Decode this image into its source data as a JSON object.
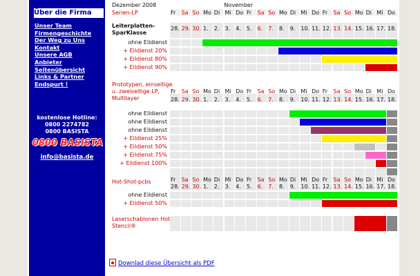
{
  "sidebar": {
    "header": "Über die Firma",
    "links": [
      "Unser Team",
      "Firmengeschichte",
      "Der Weg zu Uns",
      "Kontakt",
      "Unsere AGB",
      "Anbieter",
      "Seitenübersicht",
      "Links & Partner",
      "Endspurt !"
    ],
    "hotline_title": "kostenlose Hotline:",
    "hotline_number": "0800 2274782",
    "hotline_letters": "0800 BASISTA",
    "badge": "0800 BASISTA",
    "email": "info@basista.de"
  },
  "schedule": {
    "month_left": "Dezember 2008",
    "month_right": "November",
    "weekdays": [
      "Fr",
      "Sa",
      "So",
      "Mo",
      "Di",
      "Mi",
      "Do",
      "Fr",
      "Sa",
      "So",
      "Mo",
      "Di",
      "Mi",
      "Do",
      "Fr",
      "Sa",
      "So",
      "Mo",
      "Di",
      "Mi",
      "Do"
    ],
    "dates": [
      "28.",
      "29.",
      "30.",
      "1.",
      "2.",
      "3.",
      "4.",
      "5.",
      "6.",
      "7.",
      "8.",
      "9.",
      "10.",
      "11.",
      "12.",
      "13.",
      "14.",
      "15.",
      "16.",
      "17.",
      "18."
    ],
    "weekend_flags": [
      false,
      true,
      true,
      false,
      false,
      false,
      false,
      false,
      true,
      true,
      false,
      false,
      false,
      false,
      false,
      true,
      true,
      false,
      false,
      false,
      false
    ],
    "sections": [
      {
        "title": "Serien-LP",
        "subtitle": "Leiterplatten-SparKlasse",
        "rows": [
          {
            "label": "ohne Eildienst",
            "bars": [
              {
                "start": 3,
                "end": 21,
                "color": "#00ee00"
              }
            ]
          },
          {
            "label": "+ Eildienst 20%",
            "bars": [
              {
                "start": 10,
                "end": 21,
                "color": "#0000dd"
              }
            ]
          },
          {
            "label": "+ Eildienst 80%",
            "bars": [
              {
                "start": 14,
                "end": 21,
                "color": "#ffee00"
              }
            ]
          },
          {
            "label": "+ Eildienst 90%",
            "bars": [
              {
                "start": 18,
                "end": 21,
                "color": "#dd0000"
              }
            ]
          }
        ]
      },
      {
        "title": "Prototypen, einseitige u. zweiseitige LP, Multilayer",
        "rows": [
          {
            "label": "ohne Eildienst",
            "bars": [
              {
                "start": 11,
                "end": 20,
                "color": "#00ee00"
              },
              {
                "start": 20,
                "end": 21,
                "color": "#888888"
              }
            ]
          },
          {
            "label": "ohne Eildienst",
            "bars": [
              {
                "start": 12,
                "end": 20,
                "color": "#0000dd"
              },
              {
                "start": 20,
                "end": 21,
                "color": "#888888"
              }
            ]
          },
          {
            "label": "ohne Eildienst",
            "bars": [
              {
                "start": 13,
                "end": 20,
                "color": "#993366"
              },
              {
                "start": 20,
                "end": 21,
                "color": "#888888"
              }
            ]
          },
          {
            "label": "+ Eildienst 25%",
            "bars": [
              {
                "start": 14,
                "end": 20,
                "color": "#ffee00"
              },
              {
                "start": 20,
                "end": 21,
                "color": "#888888"
              }
            ]
          },
          {
            "label": "+ Eildienst 50%",
            "bars": [
              {
                "start": 17,
                "end": 19,
                "color": "#c0c0c0"
              },
              {
                "start": 20,
                "end": 21,
                "color": "#888888"
              }
            ]
          },
          {
            "label": "+ Eildienst 75%",
            "bars": [
              {
                "start": 18,
                "end": 20,
                "color": "#ff66cc"
              },
              {
                "start": 20,
                "end": 21,
                "color": "#888888"
              }
            ]
          },
          {
            "label": "+ Eildienst 100%",
            "bars": [
              {
                "start": 19,
                "end": 20,
                "color": "#dd0000"
              },
              {
                "start": 20,
                "end": 21,
                "color": "#888888"
              }
            ]
          },
          {
            "label": "",
            "bars": [
              {
                "start": 20,
                "end": 21,
                "color": "#888888"
              }
            ]
          }
        ]
      },
      {
        "title": "Hot-Shot-pcbs",
        "rows": [
          {
            "label": "ohne Eildienst",
            "bars": [
              {
                "start": 11,
                "end": 21,
                "color": "#00ee00"
              }
            ]
          },
          {
            "label": "+ Eildienst 50%",
            "bars": [
              {
                "start": 14,
                "end": 21,
                "color": "#dd0000"
              }
            ]
          }
        ]
      },
      {
        "title": "Laserschablonen Hot-Stencil®",
        "rows": [
          {
            "label": "",
            "bars": [
              {
                "start": 17,
                "end": 20,
                "color": "#dd0000"
              },
              {
                "start": 20,
                "end": 21,
                "color": "#888888"
              }
            ]
          }
        ]
      }
    ]
  },
  "pdf_link": "Downlad diese Übersicht als PDF"
}
